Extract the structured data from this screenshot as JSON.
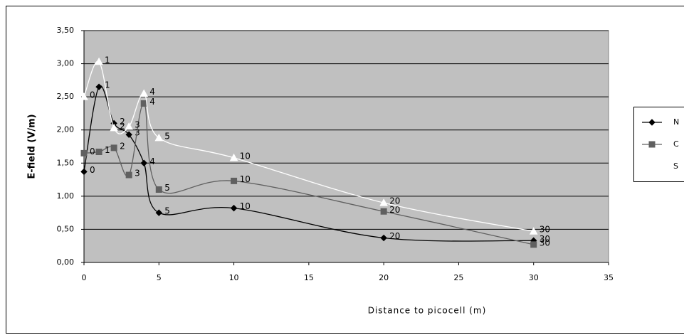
{
  "chart_data": {
    "type": "line",
    "smooth": true,
    "x_label": "Distance to picocell (m)",
    "y_label": "E-field (V/m)",
    "x": [
      0,
      1,
      2,
      3,
      4,
      5,
      10,
      20,
      30
    ],
    "series": [
      {
        "name": "N",
        "color": "#000000",
        "marker": "diamond",
        "values": [
          1.37,
          2.65,
          2.1,
          1.93,
          1.5,
          0.75,
          0.82,
          0.37,
          0.33
        ]
      },
      {
        "name": "C",
        "color": "#606060",
        "marker": "square",
        "values": [
          1.65,
          1.67,
          1.73,
          1.32,
          2.4,
          1.1,
          1.23,
          0.77,
          0.27
        ]
      },
      {
        "name": "S",
        "color": "#ffffff",
        "marker": "triangle",
        "values": [
          2.5,
          3.03,
          2.03,
          2.05,
          2.55,
          1.88,
          1.58,
          0.9,
          0.47
        ]
      }
    ],
    "xlim": [
      0,
      35
    ],
    "xticks": [
      0,
      5,
      10,
      15,
      20,
      25,
      30,
      35
    ],
    "ylim": [
      0,
      3.5
    ],
    "yticks": [
      {
        "value": 0,
        "label": "0,00"
      },
      {
        "value": 0.5,
        "label": "0,50"
      },
      {
        "value": 1,
        "label": "1,00"
      },
      {
        "value": 1.5,
        "label": "1,50"
      },
      {
        "value": 2,
        "label": "2,00"
      },
      {
        "value": 2.5,
        "label": "2,50"
      },
      {
        "value": 3,
        "label": "3,00"
      },
      {
        "value": 3.5,
        "label": "3,50"
      }
    ],
    "grid": true,
    "legend": "right",
    "plot_background": "#c0c0c0"
  }
}
